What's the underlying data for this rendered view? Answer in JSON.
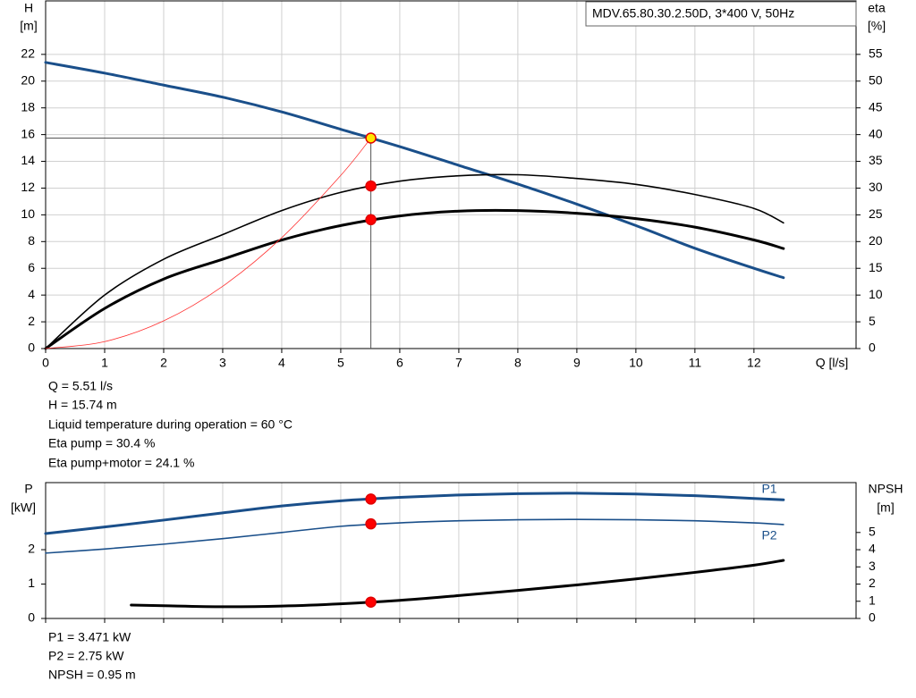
{
  "chart_data": [
    {
      "type": "line",
      "title": "MDV.65.80.30.2.50D, 3*400 V, 50Hz",
      "ylabel": [
        "H",
        "[m]"
      ],
      "y2label": [
        "eta",
        "[%]"
      ],
      "xlabel": "Q [l/s]",
      "x": [
        0,
        1,
        2,
        3,
        4,
        5,
        6,
        7,
        8,
        9,
        10,
        11,
        12,
        12.5
      ],
      "xlim": [
        0,
        13.73
      ],
      "xticks": [
        0,
        1,
        2,
        3,
        4,
        5,
        6,
        7,
        8,
        9,
        10,
        11,
        12
      ],
      "xtick_labels": true,
      "ylim": [
        0,
        26
      ],
      "yticks": [
        0,
        2,
        4,
        6,
        8,
        10,
        12,
        14,
        16,
        18,
        20,
        22
      ],
      "y2lim": [
        0,
        65
      ],
      "y2ticks": [
        0,
        5,
        10,
        15,
        20,
        25,
        30,
        35,
        40,
        45,
        50,
        55
      ],
      "grid": "both",
      "op_x": 5.51,
      "crosshair": true,
      "series": [
        {
          "color": "#1a4f8a",
          "width": 3,
          "marker_color": "#ffe600",
          "values": [
            21.4,
            20.6,
            19.7,
            18.8,
            17.7,
            16.4,
            15.1,
            13.7,
            12.3,
            10.8,
            9.2,
            7.5,
            6.0,
            5.3
          ],
          "op_value": 15.74
        },
        {
          "color": "#000000",
          "width": 1.6,
          "marker_color": "#ff0000",
          "axis": "y2",
          "values": [
            0,
            10,
            16.7,
            21.3,
            25.8,
            29.2,
            31.3,
            32.3,
            32.5,
            31.8,
            30.7,
            28.8,
            26.2,
            23.5
          ],
          "op_value": 30.4
        },
        {
          "color": "#000000",
          "width": 3,
          "marker_color": "#ff0000",
          "axis": "y2",
          "values": [
            0,
            7.5,
            13,
            16.7,
            20.3,
            23,
            24.8,
            25.7,
            25.8,
            25.3,
            24.3,
            22.7,
            20.3,
            18.7
          ],
          "op_value": 24.1
        },
        {
          "color": "#ff3030",
          "width": 0.8,
          "x": [
            0,
            1,
            2,
            3,
            4,
            5,
            5.51
          ],
          "values": [
            0,
            0.52,
            2.07,
            4.66,
            8.29,
            12.95,
            15.74
          ]
        }
      ],
      "annotations": [
        "Q = 5.51 l/s",
        "H = 15.74 m",
        "Liquid temperature during operation = 60 °C",
        "Eta pump = 30.4 %",
        "Eta pump+motor = 24.1 %"
      ]
    },
    {
      "type": "line",
      "ylabel": [
        "P",
        "[kW]"
      ],
      "y2label": [
        "NPSH",
        "[m]"
      ],
      "x": [
        0,
        1,
        2,
        3,
        4,
        5,
        6,
        7,
        8,
        9,
        10,
        11,
        12,
        12.5
      ],
      "xlim": [
        0,
        13.73
      ],
      "xticks": [
        0,
        1,
        2,
        3,
        4,
        5,
        6,
        7,
        8,
        9,
        10,
        11,
        12
      ],
      "xtick_labels": false,
      "ylim": [
        0,
        3.95
      ],
      "yticks": [
        0,
        1,
        2
      ],
      "y2lim": [
        0,
        7.9
      ],
      "y2ticks": [
        0,
        1,
        2,
        3,
        4,
        5
      ],
      "grid": "x",
      "op_x": 5.51,
      "crosshair": false,
      "series": [
        {
          "name": "P1",
          "color": "#1a4f8a",
          "width": 3,
          "marker_color": "#ff0000",
          "values": [
            2.47,
            2.66,
            2.86,
            3.07,
            3.27,
            3.42,
            3.52,
            3.59,
            3.63,
            3.64,
            3.62,
            3.57,
            3.49,
            3.45
          ],
          "op_value": 3.471
        },
        {
          "name": "P2",
          "color": "#1a4f8a",
          "width": 1.6,
          "marker_color": "#ff0000",
          "values": [
            1.9,
            2.02,
            2.16,
            2.32,
            2.5,
            2.68,
            2.78,
            2.84,
            2.87,
            2.88,
            2.87,
            2.84,
            2.78,
            2.73
          ],
          "op_value": 2.75
        },
        {
          "color": "#000000",
          "width": 3,
          "marker_color": "#ff0000",
          "axis": "y2",
          "x": [
            1.45,
            2,
            3,
            4,
            5,
            6,
            7,
            8,
            9,
            10,
            11,
            12,
            12.5
          ],
          "values": [
            0.78,
            0.74,
            0.68,
            0.72,
            0.85,
            1.05,
            1.33,
            1.63,
            1.95,
            2.3,
            2.68,
            3.1,
            3.38
          ],
          "op_value": 0.95
        }
      ],
      "annotations": [
        "P1 = 3.471 kW",
        "P2 = 2.75 kW",
        "NPSH = 0.95 m"
      ]
    }
  ]
}
